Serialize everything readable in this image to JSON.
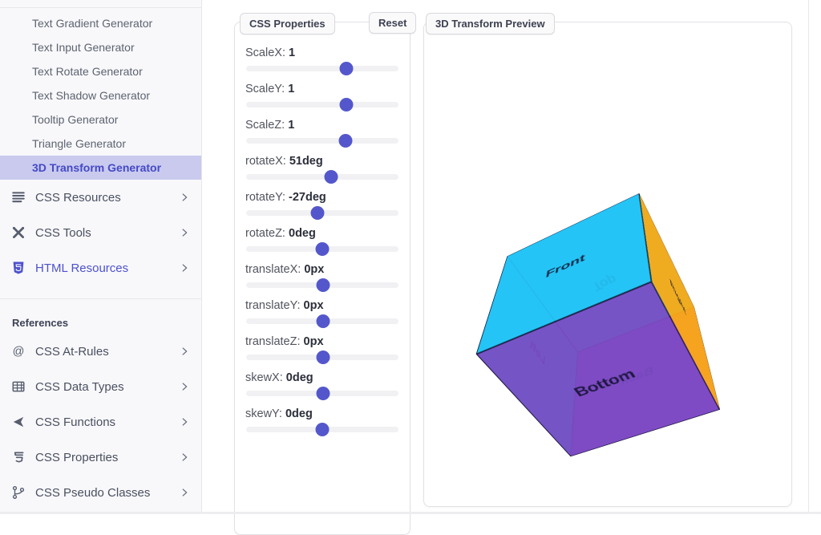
{
  "sidebar": {
    "generators": [
      {
        "label": "Text Gradient Generator",
        "active": false
      },
      {
        "label": "Text Input Generator",
        "active": false
      },
      {
        "label": "Text Rotate Generator",
        "active": false
      },
      {
        "label": "Text Shadow Generator",
        "active": false
      },
      {
        "label": "Tooltip Generator",
        "active": false
      },
      {
        "label": "Triangle Generator",
        "active": false
      },
      {
        "label": "3D Transform Generator",
        "active": true
      }
    ],
    "sections": [
      {
        "label": "CSS Resources",
        "icon": "list-icon"
      },
      {
        "label": "CSS Tools",
        "icon": "tools-icon"
      },
      {
        "label": "HTML Resources",
        "icon": "html5-icon"
      }
    ],
    "references": {
      "heading": "References",
      "items": [
        {
          "label": "CSS At-Rules",
          "icon": "at-icon"
        },
        {
          "label": "CSS Data Types",
          "icon": "table-icon"
        },
        {
          "label": "CSS Functions",
          "icon": "send-icon"
        },
        {
          "label": "CSS Properties",
          "icon": "css3-icon"
        },
        {
          "label": "CSS Pseudo Classes",
          "icon": "branch-icon"
        }
      ]
    }
  },
  "properties_panel": {
    "title": "CSS Properties",
    "reset_label": "Reset",
    "sliders": [
      {
        "name": "ScaleX:",
        "value": "1",
        "percent": 66
      },
      {
        "name": "ScaleY:",
        "value": "1",
        "percent": 66
      },
      {
        "name": "ScaleZ:",
        "value": "1",
        "percent": 65.5
      },
      {
        "name": "rotateX:",
        "value": "51deg",
        "percent": 56
      },
      {
        "name": "rotateY:",
        "value": "-27deg",
        "percent": 47
      },
      {
        "name": "rotateZ:",
        "value": "0deg",
        "percent": 50
      },
      {
        "name": "translateX:",
        "value": "0px",
        "percent": 50.5
      },
      {
        "name": "translateY:",
        "value": "0px",
        "percent": 50.5
      },
      {
        "name": "translateZ:",
        "value": "0px",
        "percent": 50.5
      },
      {
        "name": "skewX:",
        "value": "0deg",
        "percent": 50.5
      },
      {
        "name": "skewY:",
        "value": "0deg",
        "percent": 50
      }
    ]
  },
  "preview_panel": {
    "title": "3D Transform Preview",
    "cube": {
      "transform": "scaleX(1) scaleY(1) scaleZ(1) rotateX(51deg) rotateY(-27deg) rotateZ(0deg) translateX(0px) translateY(0px) translateZ(0px) skewX(0deg) skewY(0deg)",
      "faces": [
        {
          "name": "front",
          "label": "Front",
          "color": "rgba(36,194,246,0.93)"
        },
        {
          "name": "back",
          "label": "Back",
          "color": "rgba(154,44,214,0.82)"
        },
        {
          "name": "right",
          "label": "Right",
          "color": "rgba(250,168,20,0.94)"
        },
        {
          "name": "left",
          "label": "Left",
          "color": "rgba(8,221,232,0.9)"
        },
        {
          "name": "top",
          "label": "Top",
          "color": "rgba(8,221,232,0.82)"
        },
        {
          "name": "bottom",
          "label": "Bottom",
          "color": "rgba(122,74,194,0.94)"
        }
      ]
    }
  },
  "colors": {
    "accent": "#4d51ce",
    "active_item_bg": "#c9caee",
    "active_item_text": "#4549c6",
    "slider_thumb": "#5457cb",
    "slider_track": "#f1f1f4",
    "sidebar_bg": "#f8f8fb"
  }
}
